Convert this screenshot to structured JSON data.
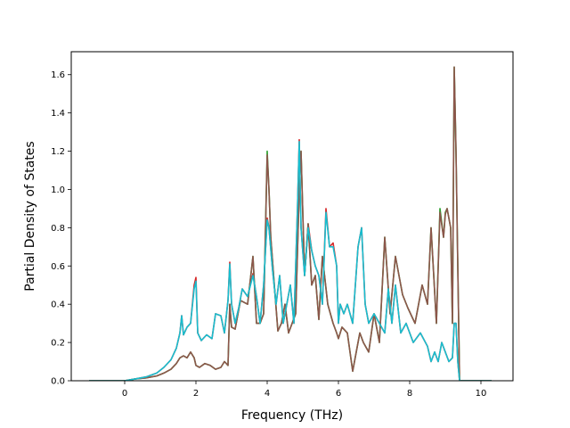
{
  "chart_data": {
    "type": "line",
    "title": "",
    "xlabel": "Frequency (THz)",
    "ylabel": "Partial Density of States",
    "xlim": [
      -1.5,
      10.9
    ],
    "ylim": [
      0.0,
      1.72
    ],
    "xticks": [
      0,
      2,
      4,
      6,
      8,
      10
    ],
    "xtick_labels": [
      "0",
      "2",
      "4",
      "6",
      "8",
      "10"
    ],
    "yticks": [
      0.0,
      0.2,
      0.4,
      0.6,
      0.8,
      1.0,
      1.2,
      1.4,
      1.6
    ],
    "ytick_labels": [
      "0.0",
      "0.2",
      "0.4",
      "0.6",
      "0.8",
      "1.0",
      "1.2",
      "1.4",
      "1.6"
    ],
    "grid": false,
    "legend": "none",
    "series": [
      {
        "color": "#d62728",
        "x": [
          -1.0,
          -0.5,
          0.0,
          0.3,
          0.6,
          0.9,
          1.1,
          1.3,
          1.45,
          1.55,
          1.6,
          1.65,
          1.75,
          1.85,
          1.95,
          2.0,
          2.05,
          2.15,
          2.3,
          2.45,
          2.55,
          2.7,
          2.8,
          2.9,
          2.95,
          3.0,
          3.1,
          3.2,
          3.3,
          3.45,
          3.6,
          3.7,
          3.8,
          3.9,
          4.0,
          4.05,
          4.15,
          4.25,
          4.35,
          4.45,
          4.55,
          4.65,
          4.75,
          4.85,
          4.9,
          4.95,
          5.05,
          5.15,
          5.25,
          5.35,
          5.45,
          5.55,
          5.65,
          5.75,
          5.85,
          5.95,
          6.0,
          6.05,
          6.15,
          6.25,
          6.4,
          6.55,
          6.65,
          6.75,
          6.85,
          7.0,
          7.15,
          7.3,
          7.4,
          7.5,
          7.6,
          7.75,
          7.9,
          8.1,
          8.3,
          8.5,
          8.6,
          8.7,
          8.8,
          8.9,
          9.0,
          9.1,
          9.2,
          9.25,
          9.3,
          9.35,
          9.4,
          9.5,
          10.3
        ],
        "y": [
          0.0,
          0.0,
          0.0,
          0.01,
          0.02,
          0.04,
          0.07,
          0.11,
          0.17,
          0.25,
          0.34,
          0.24,
          0.28,
          0.3,
          0.5,
          0.54,
          0.25,
          0.21,
          0.24,
          0.22,
          0.35,
          0.34,
          0.25,
          0.42,
          0.62,
          0.4,
          0.3,
          0.38,
          0.48,
          0.44,
          0.56,
          0.44,
          0.3,
          0.5,
          0.85,
          0.8,
          0.58,
          0.4,
          0.55,
          0.3,
          0.4,
          0.5,
          0.3,
          0.9,
          1.26,
          0.8,
          0.55,
          0.82,
          0.68,
          0.6,
          0.55,
          0.4,
          0.9,
          0.7,
          0.72,
          0.6,
          0.3,
          0.4,
          0.35,
          0.4,
          0.3,
          0.7,
          0.8,
          0.4,
          0.3,
          0.35,
          0.3,
          0.25,
          0.48,
          0.3,
          0.5,
          0.25,
          0.3,
          0.2,
          0.25,
          0.18,
          0.1,
          0.15,
          0.1,
          0.2,
          0.15,
          0.1,
          0.12,
          0.3,
          0.3,
          0.1,
          0.0,
          0.0,
          0.0
        ]
      },
      {
        "color": "#2ca02c",
        "x": [
          -1.0,
          -0.5,
          0.0,
          0.3,
          0.6,
          0.9,
          1.1,
          1.3,
          1.45,
          1.55,
          1.65,
          1.75,
          1.85,
          1.95,
          2.0,
          2.1,
          2.25,
          2.4,
          2.55,
          2.7,
          2.8,
          2.9,
          2.95,
          3.0,
          3.1,
          3.25,
          3.45,
          3.6,
          3.7,
          3.8,
          3.9,
          4.0,
          4.05,
          4.1,
          4.2,
          4.3,
          4.4,
          4.5,
          4.6,
          4.7,
          4.8,
          4.9,
          4.95,
          5.05,
          5.15,
          5.25,
          5.35,
          5.45,
          5.55,
          5.7,
          5.85,
          5.95,
          6.0,
          6.1,
          6.25,
          6.4,
          6.5,
          6.6,
          6.7,
          6.85,
          7.0,
          7.15,
          7.3,
          7.45,
          7.6,
          7.8,
          7.95,
          8.15,
          8.35,
          8.5,
          8.6,
          8.75,
          8.85,
          8.95,
          9.0,
          9.05,
          9.15,
          9.2,
          9.25,
          9.3,
          9.35,
          9.4,
          9.5,
          10.3
        ],
        "y": [
          0.0,
          0.0,
          0.0,
          0.01,
          0.015,
          0.025,
          0.04,
          0.06,
          0.09,
          0.12,
          0.13,
          0.12,
          0.15,
          0.12,
          0.08,
          0.07,
          0.09,
          0.08,
          0.06,
          0.07,
          0.1,
          0.08,
          0.4,
          0.28,
          0.27,
          0.42,
          0.4,
          0.65,
          0.3,
          0.3,
          0.35,
          1.2,
          1.0,
          0.75,
          0.5,
          0.26,
          0.3,
          0.4,
          0.25,
          0.3,
          0.35,
          1.0,
          1.2,
          0.55,
          0.82,
          0.5,
          0.55,
          0.32,
          0.65,
          0.4,
          0.3,
          0.25,
          0.22,
          0.28,
          0.25,
          0.05,
          0.15,
          0.25,
          0.2,
          0.15,
          0.35,
          0.2,
          0.75,
          0.35,
          0.65,
          0.45,
          0.38,
          0.3,
          0.5,
          0.4,
          0.8,
          0.3,
          0.9,
          0.75,
          0.88,
          0.9,
          0.8,
          0.3,
          1.64,
          1.2,
          0.6,
          0.0,
          0.0,
          0.0
        ]
      },
      {
        "color": "#8c564b",
        "x": [
          -1.0,
          -0.5,
          0.0,
          0.3,
          0.6,
          0.9,
          1.1,
          1.3,
          1.45,
          1.55,
          1.65,
          1.75,
          1.85,
          1.95,
          2.0,
          2.1,
          2.25,
          2.4,
          2.55,
          2.7,
          2.8,
          2.9,
          2.95,
          3.0,
          3.1,
          3.25,
          3.45,
          3.6,
          3.7,
          3.8,
          3.9,
          4.0,
          4.05,
          4.1,
          4.2,
          4.3,
          4.4,
          4.5,
          4.6,
          4.7,
          4.8,
          4.9,
          4.95,
          5.05,
          5.15,
          5.25,
          5.35,
          5.45,
          5.55,
          5.7,
          5.85,
          5.95,
          6.0,
          6.1,
          6.25,
          6.4,
          6.5,
          6.6,
          6.7,
          6.85,
          7.0,
          7.15,
          7.3,
          7.45,
          7.6,
          7.8,
          7.95,
          8.15,
          8.35,
          8.5,
          8.6,
          8.75,
          8.85,
          8.95,
          9.0,
          9.05,
          9.15,
          9.2,
          9.25,
          9.3,
          9.35,
          9.4,
          9.5,
          10.3
        ],
        "y": [
          0.0,
          0.0,
          0.0,
          0.01,
          0.015,
          0.025,
          0.04,
          0.06,
          0.09,
          0.12,
          0.13,
          0.12,
          0.15,
          0.12,
          0.08,
          0.07,
          0.09,
          0.08,
          0.06,
          0.07,
          0.1,
          0.08,
          0.4,
          0.28,
          0.27,
          0.42,
          0.4,
          0.65,
          0.3,
          0.3,
          0.35,
          1.18,
          1.0,
          0.75,
          0.5,
          0.26,
          0.3,
          0.4,
          0.25,
          0.3,
          0.35,
          1.0,
          1.2,
          0.55,
          0.82,
          0.5,
          0.55,
          0.32,
          0.65,
          0.4,
          0.3,
          0.25,
          0.22,
          0.28,
          0.25,
          0.05,
          0.15,
          0.25,
          0.2,
          0.15,
          0.35,
          0.2,
          0.75,
          0.35,
          0.65,
          0.45,
          0.38,
          0.3,
          0.5,
          0.4,
          0.8,
          0.3,
          0.88,
          0.75,
          0.87,
          0.9,
          0.8,
          0.3,
          1.64,
          1.2,
          0.6,
          0.0,
          0.0,
          0.0
        ]
      },
      {
        "color": "#17becf",
        "x": [
          -1.0,
          -0.5,
          0.0,
          0.3,
          0.6,
          0.9,
          1.1,
          1.3,
          1.45,
          1.55,
          1.6,
          1.65,
          1.75,
          1.85,
          1.95,
          2.0,
          2.05,
          2.15,
          2.3,
          2.45,
          2.55,
          2.7,
          2.8,
          2.9,
          2.95,
          3.0,
          3.1,
          3.2,
          3.3,
          3.45,
          3.6,
          3.7,
          3.8,
          3.9,
          4.0,
          4.05,
          4.15,
          4.25,
          4.35,
          4.45,
          4.55,
          4.65,
          4.75,
          4.85,
          4.9,
          4.95,
          5.05,
          5.15,
          5.25,
          5.35,
          5.45,
          5.55,
          5.65,
          5.75,
          5.85,
          5.95,
          6.0,
          6.05,
          6.15,
          6.25,
          6.4,
          6.55,
          6.65,
          6.75,
          6.85,
          7.0,
          7.15,
          7.3,
          7.4,
          7.5,
          7.6,
          7.75,
          7.9,
          8.1,
          8.3,
          8.5,
          8.6,
          8.7,
          8.8,
          8.9,
          9.0,
          9.1,
          9.2,
          9.25,
          9.3,
          9.35,
          9.4,
          9.5,
          10.3
        ],
        "y": [
          0.0,
          0.0,
          0.0,
          0.01,
          0.02,
          0.04,
          0.07,
          0.11,
          0.17,
          0.25,
          0.34,
          0.24,
          0.28,
          0.3,
          0.48,
          0.52,
          0.25,
          0.21,
          0.24,
          0.22,
          0.35,
          0.34,
          0.25,
          0.42,
          0.61,
          0.4,
          0.3,
          0.38,
          0.48,
          0.44,
          0.55,
          0.44,
          0.3,
          0.5,
          0.84,
          0.8,
          0.58,
          0.4,
          0.55,
          0.3,
          0.4,
          0.5,
          0.3,
          0.9,
          1.25,
          0.8,
          0.55,
          0.8,
          0.68,
          0.6,
          0.55,
          0.4,
          0.88,
          0.7,
          0.7,
          0.6,
          0.3,
          0.4,
          0.35,
          0.4,
          0.3,
          0.7,
          0.8,
          0.4,
          0.3,
          0.35,
          0.3,
          0.25,
          0.48,
          0.3,
          0.5,
          0.25,
          0.3,
          0.2,
          0.25,
          0.18,
          0.1,
          0.15,
          0.1,
          0.2,
          0.15,
          0.1,
          0.12,
          0.3,
          0.3,
          0.1,
          0.0,
          0.0,
          0.0
        ]
      }
    ]
  }
}
